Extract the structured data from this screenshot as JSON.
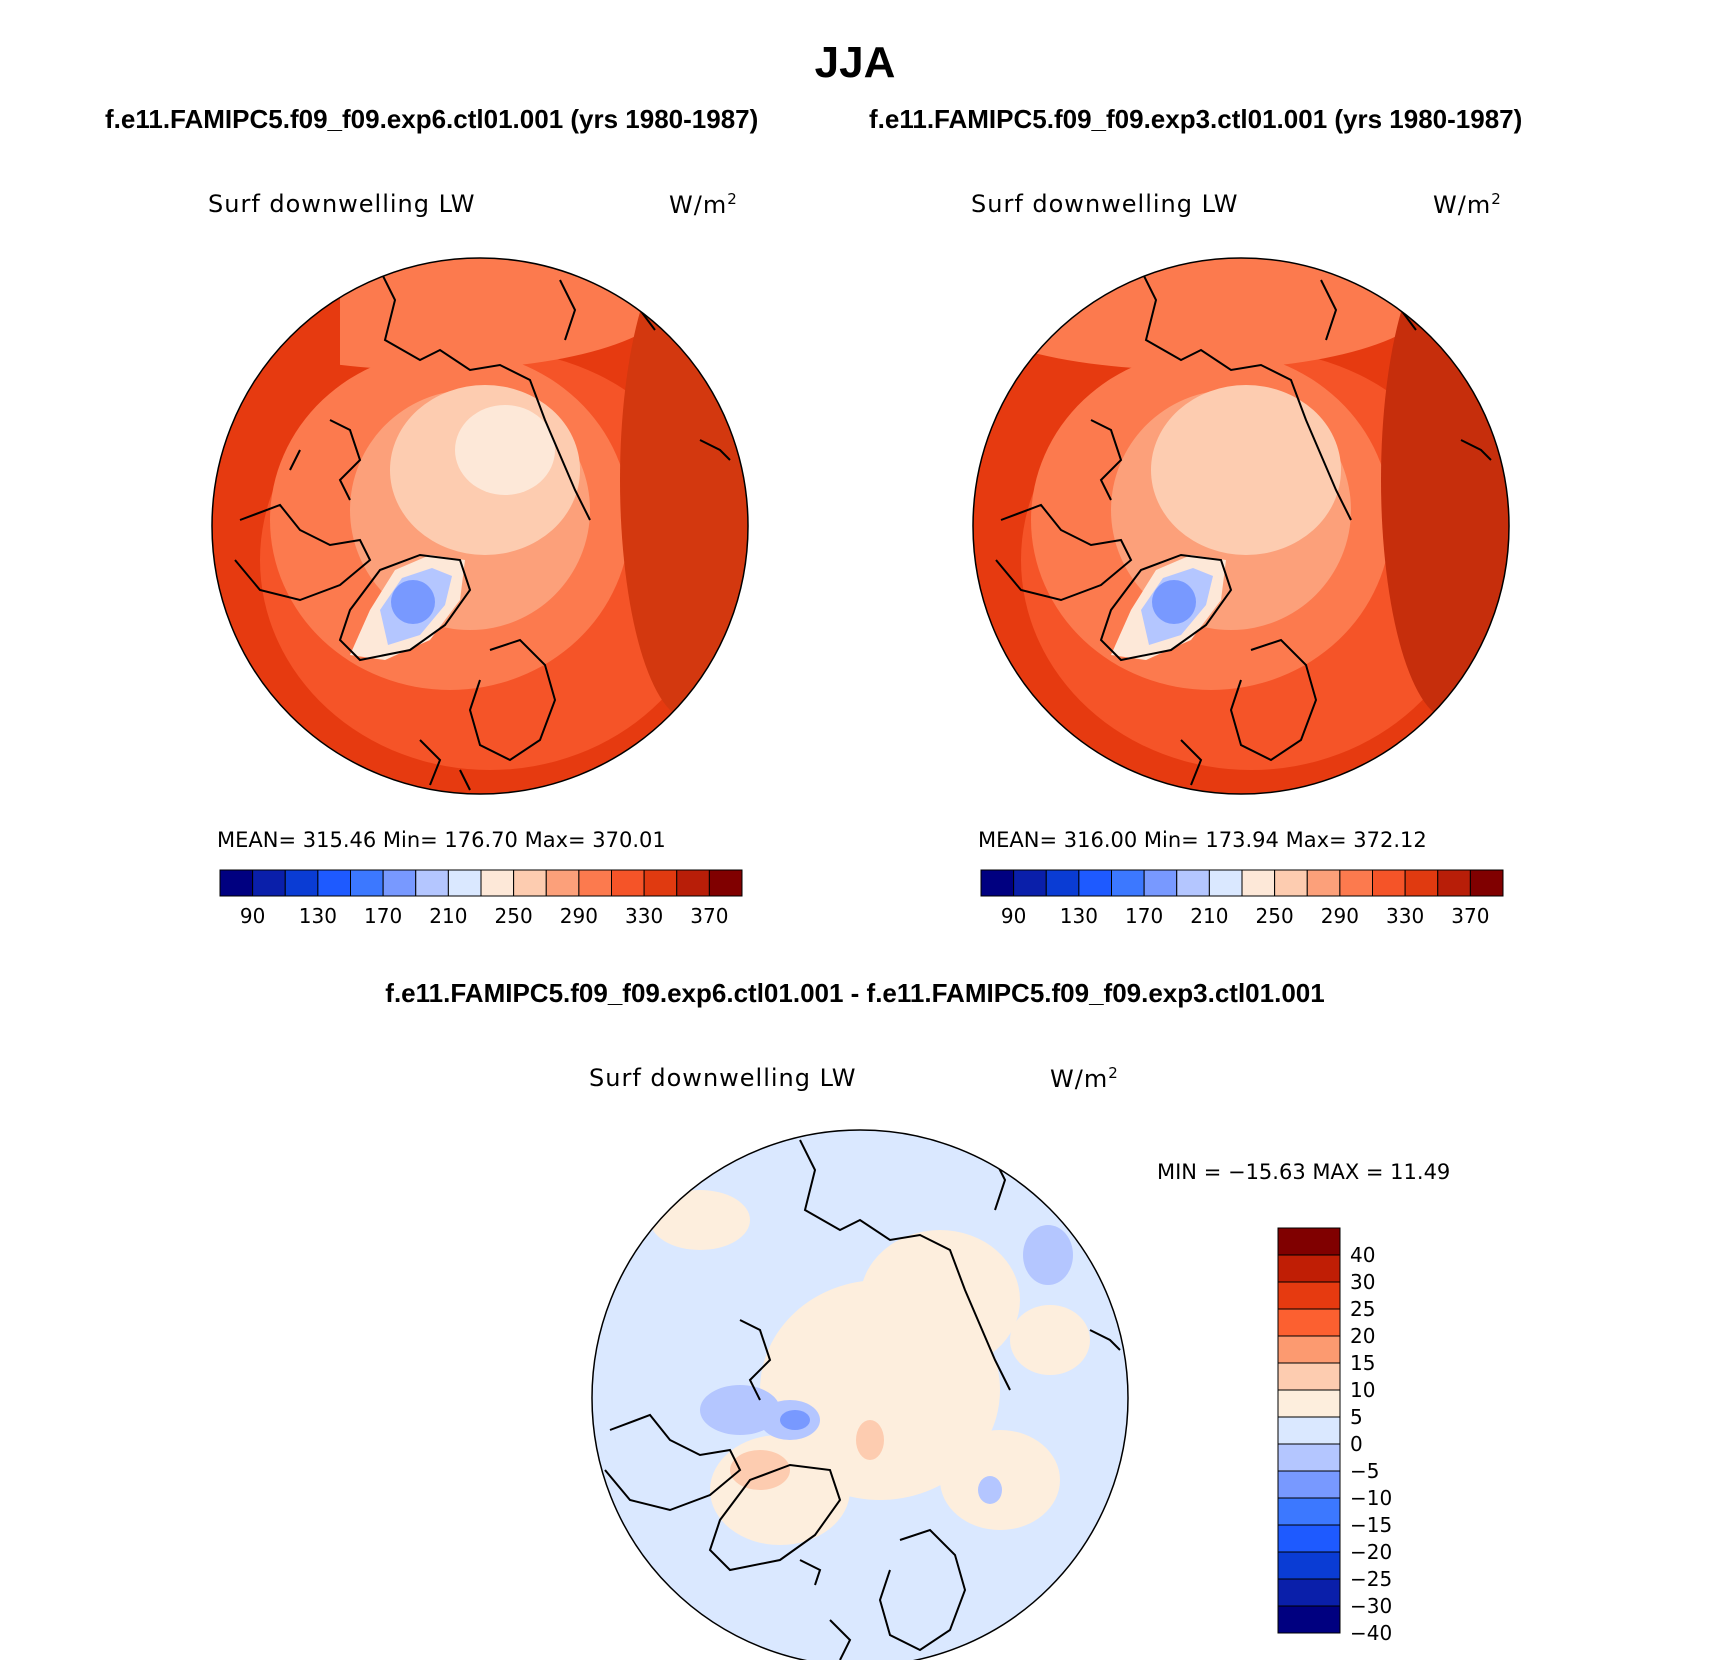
{
  "figure": {
    "season": "JJA",
    "case1_title": "f.e11.FAMIPC5.f09_f09.exp6.ctl01.001 (yrs 1980-1987)",
    "case2_title": "f.e11.FAMIPC5.f09_f09.exp3.ctl01.001 (yrs 1980-1987)",
    "diff_title": "f.e11.FAMIPC5.f09_f09.exp6.ctl01.001 - f.e11.FAMIPC5.f09_f09.exp3.ctl01.001"
  },
  "panels": {
    "p1": {
      "variable": "Surf downwelling LW",
      "units_base": "W/m",
      "units_exp": "2",
      "stats": "MEAN= 315.46   Min= 176.70   Max= 370.01"
    },
    "p2": {
      "variable": "Surf downwelling LW",
      "units_base": "W/m",
      "units_exp": "2",
      "stats": "MEAN= 316.00   Min= 173.94   Max= 372.12"
    },
    "p3": {
      "variable": "Surf downwelling LW",
      "units_base": "W/m",
      "units_exp": "2",
      "stats": "MIN = −15.63 MAX =  11.49"
    }
  },
  "colorbar_abs": {
    "colors": [
      "#000080",
      "#0a1faa",
      "#0a3cd4",
      "#1e5aff",
      "#3c78ff",
      "#7899ff",
      "#b4c6ff",
      "#dae8ff",
      "#fde8d8",
      "#fdccb0",
      "#fca07a",
      "#fc7a4e",
      "#f55428",
      "#e03a10",
      "#b81e08",
      "#800000"
    ],
    "labels": [
      "90",
      "130",
      "170",
      "210",
      "250",
      "290",
      "330",
      "370"
    ]
  },
  "colorbar_diff": {
    "colors": [
      "#800000",
      "#c01e05",
      "#e63a10",
      "#fc6030",
      "#fc9a70",
      "#fdccb0",
      "#fdeedd",
      "#dae8ff",
      "#b4c6ff",
      "#7899ff",
      "#3c78ff",
      "#1e5aff",
      "#0a3cd4",
      "#0a1faa",
      "#000080"
    ],
    "labels": [
      "40",
      "30",
      "25",
      "20",
      "15",
      "10",
      "5",
      "0",
      "−5",
      "−10",
      "−15",
      "−20",
      "−25",
      "−30",
      "−40"
    ]
  }
}
